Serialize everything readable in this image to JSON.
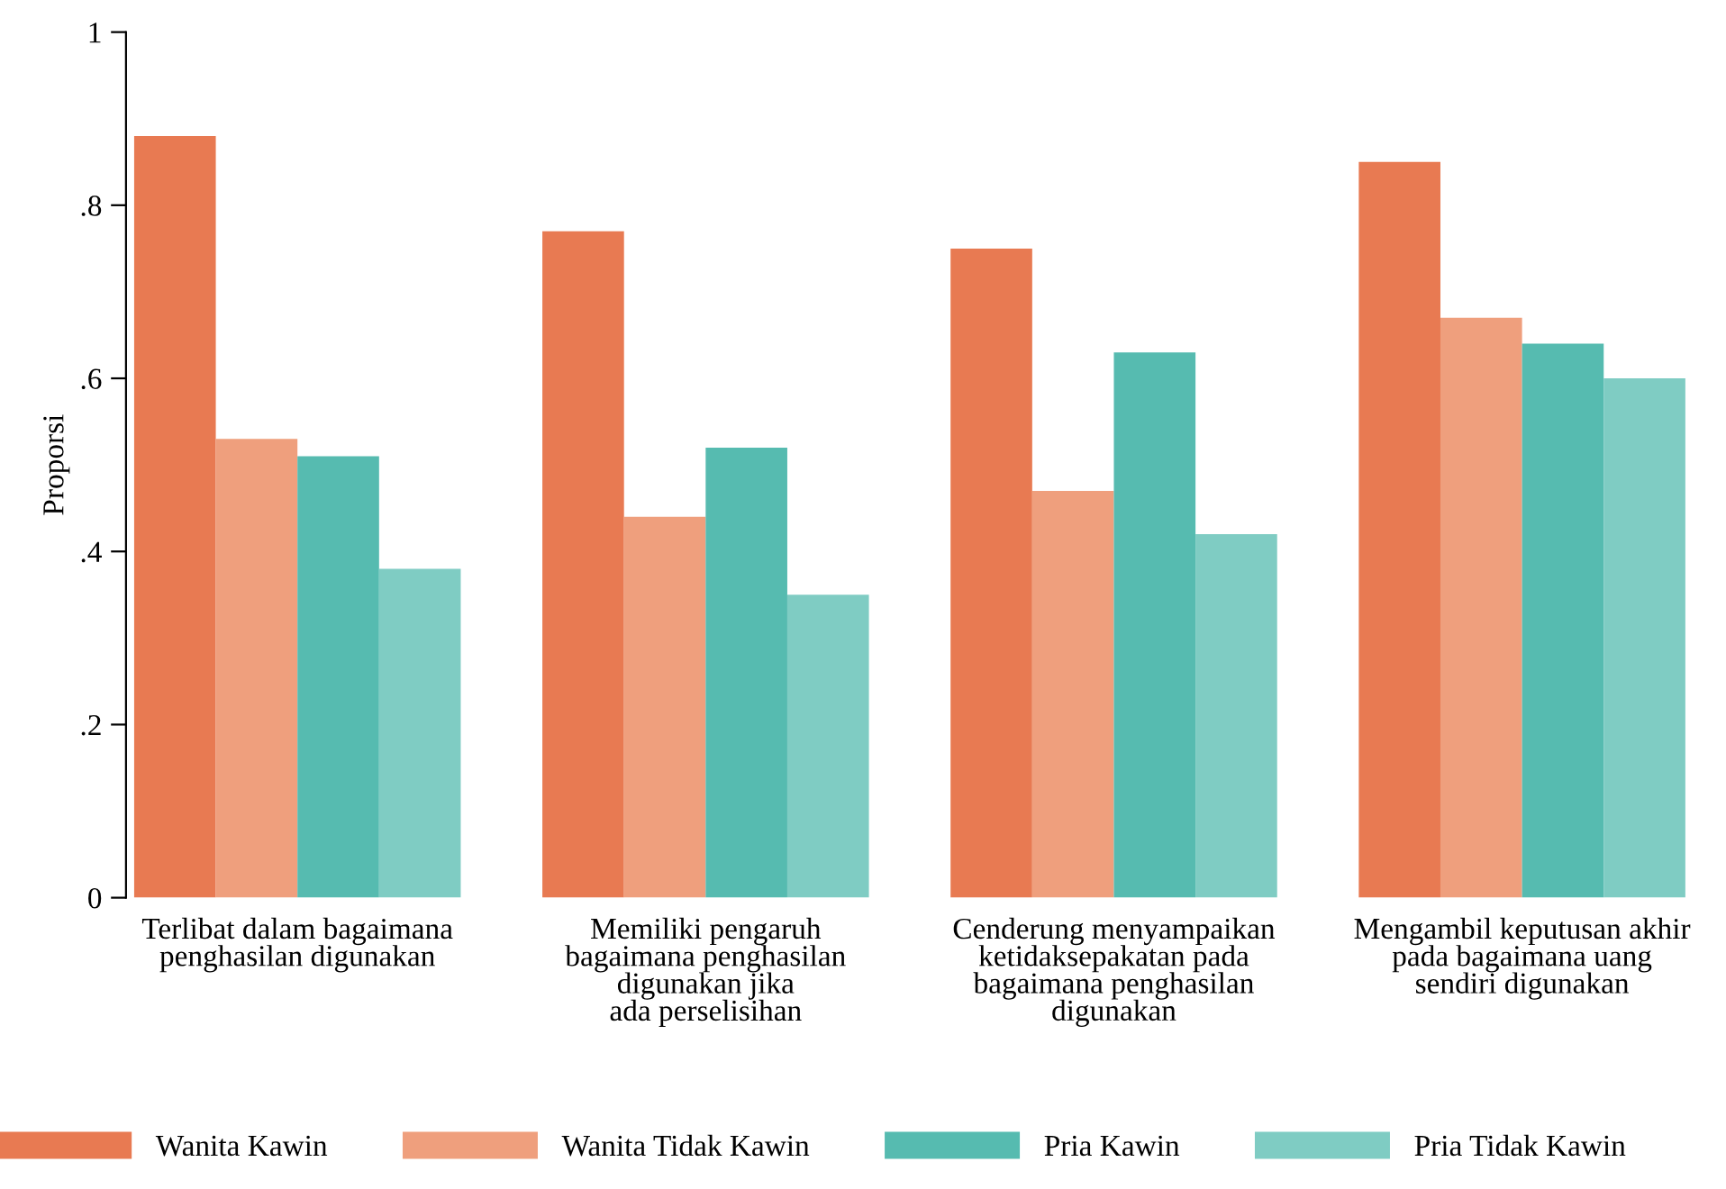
{
  "chart_data": {
    "type": "bar",
    "ylabel": "Proporsi",
    "categories": [
      "Terlibat dalam bagaimana\npenghasilan digunakan",
      "Memiliki pengaruh\nbagaimana penghasilan\ndigunakan jika\nada perselisihan",
      "Cenderung menyampaikan\nketidaksepakatan pada\nbagaimana penghasilan\ndigunakan",
      "Mengambil keputusan akhir\npada bagaimana uang\nsendiri digunakan"
    ],
    "series": [
      {
        "name": "Wanita Kawin",
        "color": "#e87a52",
        "values": [
          0.88,
          0.77,
          0.75,
          0.85
        ]
      },
      {
        "name": "Wanita Tidak Kawin",
        "color": "#ef9f7d",
        "values": [
          0.53,
          0.44,
          0.47,
          0.67
        ]
      },
      {
        "name": "Pria Kawin",
        "color": "#56bbb0",
        "values": [
          0.51,
          0.52,
          0.63,
          0.64
        ]
      },
      {
        "name": "Pria Tidak Kawin",
        "color": "#7fccc3",
        "values": [
          0.38,
          0.35,
          0.42,
          0.6
        ]
      }
    ],
    "ylim": [
      0,
      1
    ],
    "yticks": [
      0,
      {
        "value": 0.2,
        "label": ".2"
      },
      {
        "value": 0.4,
        "label": ".4"
      },
      {
        "value": 0.6,
        "label": ".6"
      },
      {
        "value": 0.8,
        "label": ".8"
      },
      1
    ],
    "grid": false,
    "legend": "bottom"
  }
}
